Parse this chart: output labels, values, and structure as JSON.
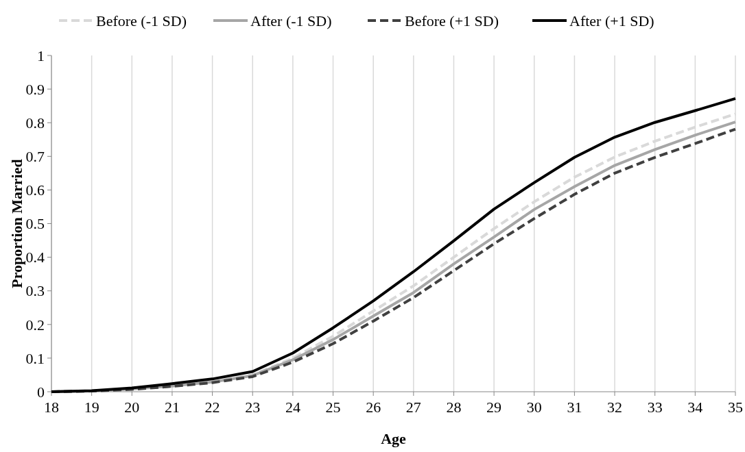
{
  "chart_data": {
    "type": "line",
    "xlabel": "Age",
    "ylabel": "Proportion Married",
    "categories": [
      "18",
      "19",
      "20",
      "21",
      "22",
      "23",
      "24",
      "25",
      "26",
      "27",
      "28",
      "29",
      "30",
      "31",
      "32",
      "33",
      "34",
      "35"
    ],
    "ylim": [
      0,
      1
    ],
    "yticks": [
      0,
      0.1,
      0.2,
      0.3,
      0.4,
      0.5,
      0.6,
      0.7,
      0.8,
      0.9,
      1
    ],
    "grid": "x",
    "legend": "top",
    "series": [
      {
        "name": "Before (-1 SD)",
        "color": "#d9d9d9",
        "line_style": "dashed",
        "values": [
          0,
          0.002,
          0.008,
          0.018,
          0.03,
          0.05,
          0.1,
          0.165,
          0.24,
          0.315,
          0.4,
          0.485,
          0.565,
          0.638,
          0.698,
          0.745,
          0.787,
          0.826
        ]
      },
      {
        "name": "After (-1 SD)",
        "color": "#a6a6a6",
        "line_style": "solid",
        "values": [
          0,
          0.002,
          0.008,
          0.017,
          0.029,
          0.048,
          0.095,
          0.155,
          0.225,
          0.295,
          0.38,
          0.46,
          0.542,
          0.61,
          0.673,
          0.72,
          0.763,
          0.802
        ]
      },
      {
        "name": "Before (+1 SD)",
        "color": "#404040",
        "line_style": "dashed",
        "values": [
          0,
          0.002,
          0.007,
          0.016,
          0.027,
          0.045,
          0.088,
          0.143,
          0.21,
          0.28,
          0.36,
          0.44,
          0.515,
          0.587,
          0.65,
          0.697,
          0.738,
          0.781
        ]
      },
      {
        "name": "After (+1 SD)",
        "color": "#000000",
        "line_style": "solid",
        "values": [
          0,
          0.003,
          0.011,
          0.024,
          0.038,
          0.06,
          0.115,
          0.19,
          0.27,
          0.357,
          0.449,
          0.543,
          0.622,
          0.697,
          0.757,
          0.801,
          0.836,
          0.872
        ]
      }
    ]
  }
}
